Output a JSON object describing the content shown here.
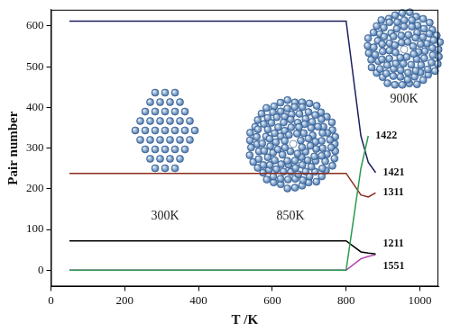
{
  "chart_data": {
    "type": "line",
    "x_label": "T /K",
    "y_label": "Pair number",
    "x": [
      50,
      800,
      840,
      860,
      880
    ],
    "series": [
      {
        "name": "1422",
        "color": "#2a9a4e",
        "values": [
          0,
          0,
          250,
          330,
          null
        ]
      },
      {
        "name": "1421",
        "color": "#1c1f5e",
        "values": [
          612,
          612,
          330,
          265,
          240
        ]
      },
      {
        "name": "1311",
        "color": "#8b2a1a",
        "values": [
          238,
          238,
          185,
          180,
          190
        ]
      },
      {
        "name": "1211",
        "color": "#000000",
        "values": [
          72,
          72,
          45,
          42,
          40
        ]
      },
      {
        "name": "1551",
        "color": "#b040b0",
        "values": [
          0,
          0,
          28,
          34,
          38
        ]
      }
    ],
    "xlim": [
      0,
      1050
    ],
    "xticks": [
      0,
      200,
      400,
      600,
      800,
      1000
    ],
    "ylim": [
      -40,
      640
    ],
    "yticks": [
      0,
      100,
      200,
      300,
      400,
      500,
      600
    ],
    "grid": false,
    "annotations": [
      "300K",
      "850K",
      "900K"
    ]
  }
}
